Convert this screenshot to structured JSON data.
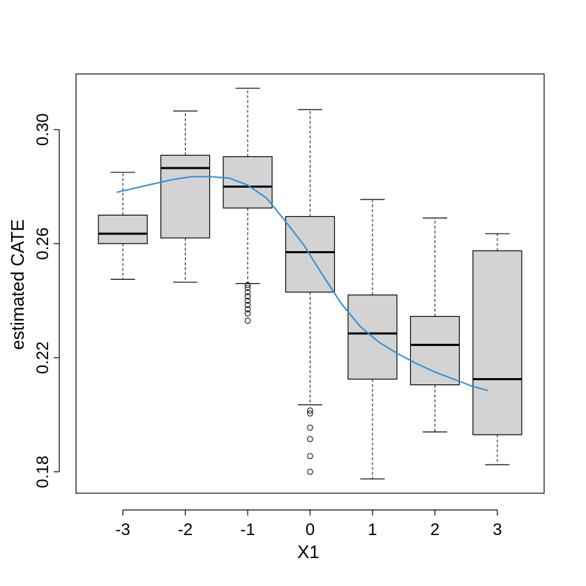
{
  "chart_data": {
    "type": "box",
    "title": "",
    "xlabel": "X1",
    "ylabel": "estimated CATE",
    "ylim": [
      0.1725,
      0.3195
    ],
    "yticks": [
      "0.18",
      "0.22",
      "0.26",
      "0.30"
    ],
    "categories": [
      "-3",
      "-2",
      "-1",
      "0",
      "1",
      "2",
      "3"
    ],
    "boxes": [
      {
        "x": "-3",
        "whisker_low": 0.2475,
        "q1": 0.26,
        "median": 0.2635,
        "q3": 0.27,
        "whisker_high": 0.285,
        "outliers": []
      },
      {
        "x": "-2",
        "whisker_low": 0.2465,
        "q1": 0.262,
        "median": 0.2865,
        "q3": 0.291,
        "whisker_high": 0.3065,
        "outliers": []
      },
      {
        "x": "-1",
        "whisker_low": 0.246,
        "q1": 0.2725,
        "median": 0.28,
        "q3": 0.2905,
        "whisker_high": 0.3145,
        "outliers": [
          0.2455,
          0.2445,
          0.243,
          0.2415,
          0.24,
          0.2385,
          0.237,
          0.2355,
          0.233
        ]
      },
      {
        "x": "0",
        "whisker_low": 0.2035,
        "q1": 0.243,
        "median": 0.257,
        "q3": 0.2695,
        "whisker_high": 0.307,
        "outliers": [
          0.2015,
          0.2005,
          0.1955,
          0.1915,
          0.1855,
          0.18
        ]
      },
      {
        "x": "1",
        "whisker_low": 0.1775,
        "q1": 0.2125,
        "median": 0.2285,
        "q3": 0.242,
        "whisker_high": 0.2755,
        "outliers": []
      },
      {
        "x": "2",
        "whisker_low": 0.194,
        "q1": 0.2105,
        "median": 0.2245,
        "q3": 0.2345,
        "whisker_high": 0.269,
        "outliers": []
      },
      {
        "x": "3",
        "whisker_low": 0.1825,
        "q1": 0.193,
        "median": 0.2125,
        "q3": 0.2575,
        "whisker_high": 0.2635,
        "outliers": []
      }
    ],
    "trend_line": {
      "x": [
        -3.1,
        -2.8,
        -2.5,
        -2.2,
        -1.9,
        -1.6,
        -1.3,
        -1.0,
        -0.7,
        -0.4,
        -0.1,
        0.2,
        0.5,
        0.8,
        1.1,
        1.4,
        1.7,
        2.0,
        2.3,
        2.6,
        2.85
      ],
      "y": [
        0.278,
        0.2795,
        0.281,
        0.2825,
        0.2835,
        0.2835,
        0.283,
        0.2805,
        0.276,
        0.268,
        0.2595,
        0.249,
        0.239,
        0.231,
        0.2255,
        0.2215,
        0.218,
        0.215,
        0.2125,
        0.21,
        0.2085
      ]
    },
    "colors": {
      "box_fill": "#d3d3d3",
      "stroke": "#000000",
      "trend": "#2b8fd9"
    },
    "grid": false,
    "legend": "none"
  }
}
